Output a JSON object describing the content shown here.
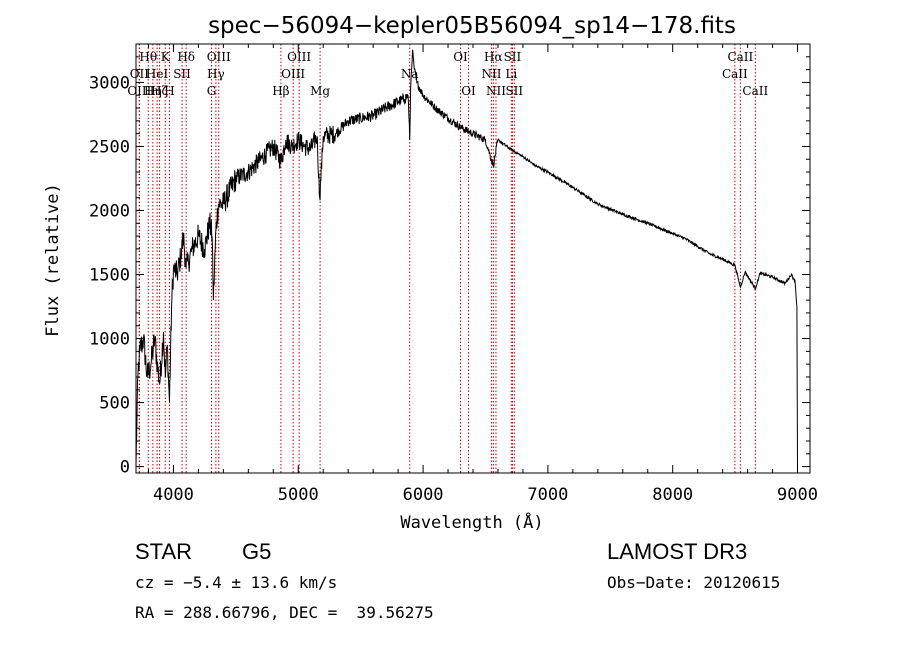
{
  "chart_data": {
    "type": "line",
    "title": "spec−56094−kepler05B56094_sp14−178.fits",
    "xlabel": "Wavelength (Å)",
    "ylabel": "Flux (relative)",
    "xlim": [
      3700,
      9100
    ],
    "ylim": [
      -50,
      3300
    ],
    "xticks": [
      4000,
      5000,
      6000,
      7000,
      8000,
      9000
    ],
    "yticks": [
      0,
      500,
      1000,
      1500,
      2000,
      2500,
      3000
    ],
    "xtick_labels": [
      "4000",
      "5000",
      "6000",
      "7000",
      "8000",
      "9000"
    ],
    "ytick_labels": [
      "0",
      "500",
      "1000",
      "1500",
      "2000",
      "2500",
      "3000"
    ],
    "spectrum_anchor_points": {
      "x": [
        3700,
        3715,
        3730,
        3760,
        3790,
        3820,
        3850,
        3870,
        3890,
        3920,
        3935,
        3950,
        3968,
        3985,
        4000,
        4030,
        4060,
        4080,
        4101,
        4120,
        4150,
        4200,
        4250,
        4290,
        4310,
        4320,
        4340,
        4360,
        4400,
        4500,
        4600,
        4700,
        4800,
        4862,
        4900,
        4950,
        5000,
        5050,
        5100,
        5150,
        5172,
        5200,
        5300,
        5400,
        5500,
        5600,
        5700,
        5800,
        5850,
        5880,
        5893,
        5900,
        5915,
        5930,
        5950,
        6000,
        6100,
        6200,
        6300,
        6400,
        6500,
        6563,
        6600,
        6700,
        6800,
        6900,
        7000,
        7200,
        7400,
        7600,
        7800,
        8000,
        8100,
        8200,
        8300,
        8400,
        8500,
        8542,
        8580,
        8662,
        8700,
        8800,
        8900,
        8950,
        8980,
        8995,
        9000
      ],
      "y": [
        0,
        700,
        900,
        1000,
        700,
        800,
        1000,
        800,
        650,
        1050,
        700,
        950,
        500,
        1250,
        1550,
        1500,
        1650,
        1800,
        1550,
        1600,
        1700,
        1800,
        1700,
        1900,
        1800,
        1300,
        1850,
        2050,
        2050,
        2250,
        2300,
        2400,
        2500,
        2380,
        2550,
        2500,
        2550,
        2500,
        2480,
        2580,
        2100,
        2580,
        2600,
        2700,
        2720,
        2740,
        2800,
        2850,
        2870,
        2900,
        2550,
        2950,
        3250,
        3100,
        3000,
        2900,
        2800,
        2720,
        2650,
        2600,
        2550,
        2350,
        2550,
        2480,
        2420,
        2350,
        2300,
        2180,
        2050,
        1970,
        1900,
        1820,
        1780,
        1720,
        1660,
        1620,
        1570,
        1400,
        1520,
        1390,
        1510,
        1480,
        1430,
        1500,
        1450,
        1250,
        0
      ]
    },
    "spectral_lines": [
      {
        "wavelength": 3727,
        "label": "OII",
        "row": 1
      },
      {
        "wavelength": 3727,
        "label": "OIII",
        "row": 2
      },
      {
        "wavelength": 3798,
        "label": "Hθ",
        "row": 0
      },
      {
        "wavelength": 3835,
        "label": "Hη",
        "row": 2
      },
      {
        "wavelength": 3869,
        "label": "HeI",
        "row": 1
      },
      {
        "wavelength": 3889,
        "label": "Hζ",
        "row": 2
      },
      {
        "wavelength": 3934,
        "label": "K",
        "row": 0
      },
      {
        "wavelength": 3968,
        "label": "H",
        "row": 2
      },
      {
        "wavelength": 4069,
        "label": "SII",
        "row": 1
      },
      {
        "wavelength": 4102,
        "label": "Hδ",
        "row": 0
      },
      {
        "wavelength": 4305,
        "label": "G",
        "row": 2
      },
      {
        "wavelength": 4340,
        "label": "Hγ",
        "row": 1
      },
      {
        "wavelength": 4363,
        "label": "OIII",
        "row": 0
      },
      {
        "wavelength": 4861,
        "label": "Hβ",
        "row": 2
      },
      {
        "wavelength": 4959,
        "label": "OIII",
        "row": 1
      },
      {
        "wavelength": 5007,
        "label": "OIII",
        "row": 0
      },
      {
        "wavelength": 5175,
        "label": "Mg",
        "row": 2
      },
      {
        "wavelength": 5893,
        "label": "Na",
        "row": 1
      },
      {
        "wavelength": 6300,
        "label": "OI",
        "row": 0
      },
      {
        "wavelength": 6364,
        "label": "OI",
        "row": 2
      },
      {
        "wavelength": 6548,
        "label": "NII",
        "row": 1
      },
      {
        "wavelength": 6563,
        "label": "Hα",
        "row": 0
      },
      {
        "wavelength": 6584,
        "label": "NII",
        "row": 2
      },
      {
        "wavelength": 6707,
        "label": "Li",
        "row": 1
      },
      {
        "wavelength": 6716,
        "label": "SII",
        "row": 0
      },
      {
        "wavelength": 6731,
        "label": "SII",
        "row": 2
      },
      {
        "wavelength": 8498,
        "label": "CaII",
        "row": 1
      },
      {
        "wavelength": 8542,
        "label": "CaII",
        "row": 0
      },
      {
        "wavelength": 8662,
        "label": "CaII",
        "row": 2
      }
    ]
  },
  "info": {
    "class_label": "STAR",
    "subclass": "G5",
    "survey": "LAMOST DR3",
    "cz": "cz = −5.4 ± 13.6 km/s",
    "obs_date": "Obs−Date: 20120615",
    "coords": "RA = 288.66796, DEC =  39.56275"
  },
  "colors": {
    "line_marker": "#cc0000",
    "spectrum": "#000000",
    "axis": "#000000"
  }
}
